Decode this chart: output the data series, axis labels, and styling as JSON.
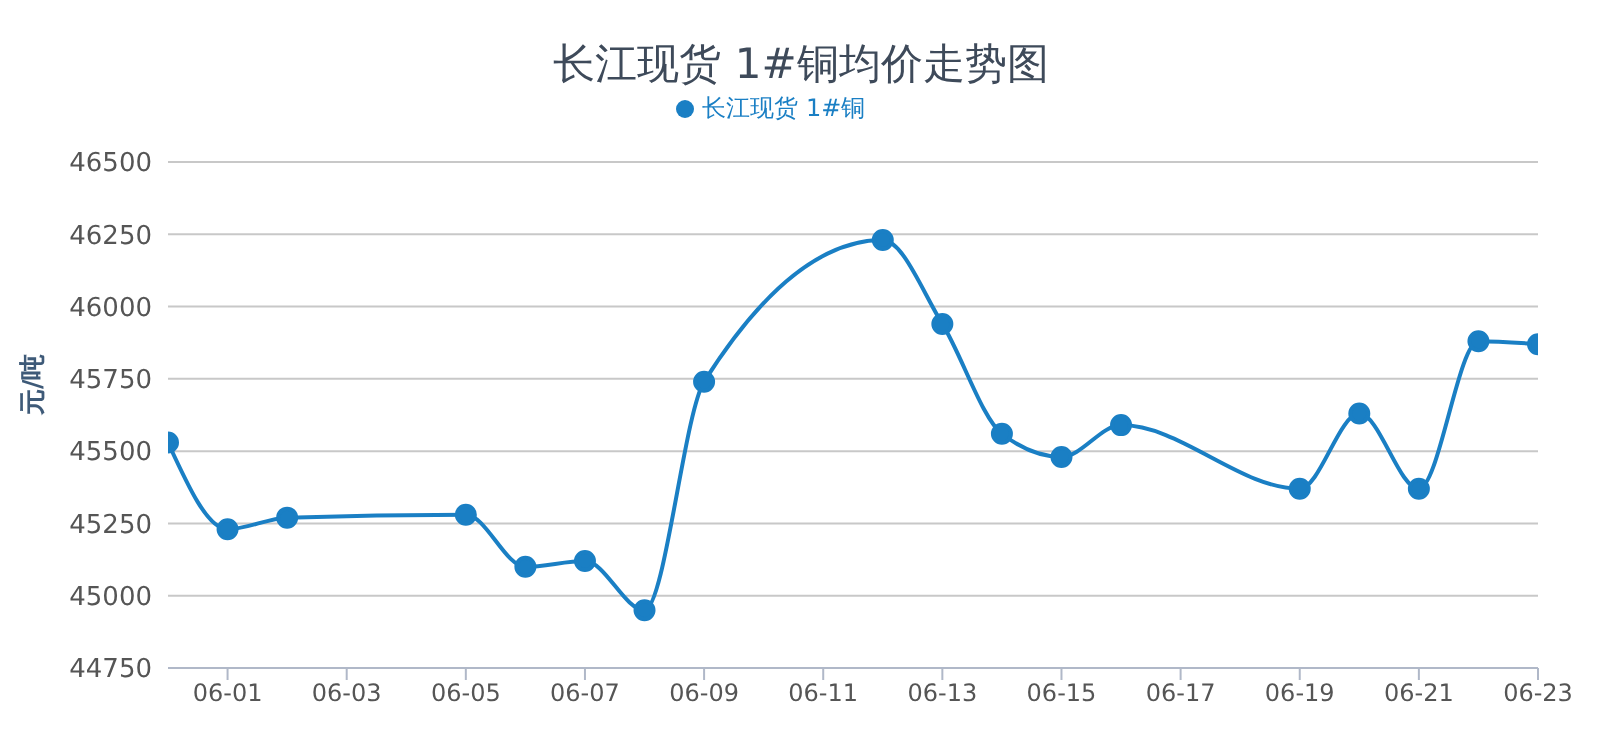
{
  "chart_data": {
    "type": "line",
    "title": "长江现货 1#铜均价走势图",
    "ylabel": "元/吨",
    "x": [
      "--05-31",
      "--06-01",
      "--06-02",
      "--06-05",
      "--06-06",
      "--06-07",
      "--06-08",
      "--06-09",
      "--06-12",
      "--06-13",
      "--06-14",
      "--06-15",
      "--06-16",
      "--06-19",
      "--06-20",
      "--06-21",
      "--06-22",
      "--06-23"
    ],
    "series": [
      {
        "name": "长江现货 1#铜",
        "color": "#1a7fc4",
        "values": [
          45530,
          45230,
          45270,
          45280,
          45100,
          45120,
          44950,
          45740,
          46230,
          45940,
          45560,
          45480,
          45590,
          45370,
          45630,
          45370,
          45880,
          45870
        ]
      }
    ],
    "xlim": [
      "--05-31",
      "--06-23"
    ],
    "xticks": [
      {
        "value": "--06-01",
        "label": "06-01"
      },
      {
        "value": "--06-03",
        "label": "06-03"
      },
      {
        "value": "--06-05",
        "label": "06-05"
      },
      {
        "value": "--06-07",
        "label": "06-07"
      },
      {
        "value": "--06-09",
        "label": "06-09"
      },
      {
        "value": "--06-11",
        "label": "06-11"
      },
      {
        "value": "--06-13",
        "label": "06-13"
      },
      {
        "value": "--06-15",
        "label": "06-15"
      },
      {
        "value": "--06-17",
        "label": "06-17"
      },
      {
        "value": "--06-19",
        "label": "06-19"
      },
      {
        "value": "--06-21",
        "label": "06-21"
      },
      {
        "value": "--06-23",
        "label": "06-23"
      }
    ],
    "ylim": [
      44750,
      46500
    ],
    "yticks": [
      44750,
      45000,
      45250,
      45500,
      45750,
      46000,
      46250,
      46500
    ],
    "grid": "y",
    "legend": "top",
    "marker": "circle",
    "line_style": "solid"
  }
}
